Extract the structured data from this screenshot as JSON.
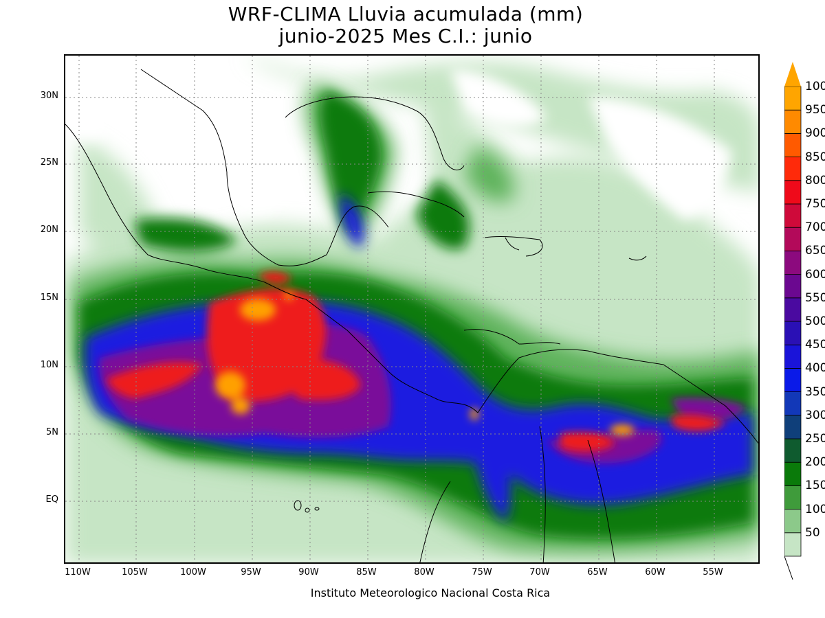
{
  "title": {
    "line1": "WRF-CLIMA Lluvia acumulada (mm)",
    "line2": "junio-2025 Mes C.I.: junio"
  },
  "footer": "Instituto Meteorologico Nacional Costa Rica",
  "y_ticks": [
    "30N",
    "25N",
    "20N",
    "15N",
    "10N",
    "5N",
    "EQ"
  ],
  "x_ticks": [
    "110W",
    "105W",
    "100W",
    "95W",
    "90W",
    "85W",
    "80W",
    "75W",
    "70W",
    "65W",
    "60W",
    "55W"
  ],
  "colorbar": {
    "labels_top_to_bottom": [
      "1000",
      "950",
      "900",
      "850",
      "800",
      "750",
      "700",
      "650",
      "600",
      "550",
      "500",
      "450",
      "400",
      "350",
      "300",
      "250",
      "200",
      "150",
      "100",
      "50"
    ],
    "colors_bottom_to_top": [
      "#c6e5c5",
      "#8cc98a",
      "#3f9b3b",
      "#0a7a0a",
      "#0f5b2f",
      "#0f3f7a",
      "#1238b8",
      "#0a1ae8",
      "#1a14d9",
      "#2a10b5",
      "#4a0aa0",
      "#6b0890",
      "#8c0a7e",
      "#b30a5a",
      "#cf0a3a",
      "#ef0a1a",
      "#ff2a0a",
      "#ff5a00",
      "#ff8a00",
      "#ffa500"
    ]
  },
  "map": {
    "projection": "lat-lon",
    "lon_range": [
      "111W",
      "51W"
    ],
    "lat_range": [
      "5S",
      "33N"
    ],
    "variable": "Lluvia acumulada (mm)"
  }
}
